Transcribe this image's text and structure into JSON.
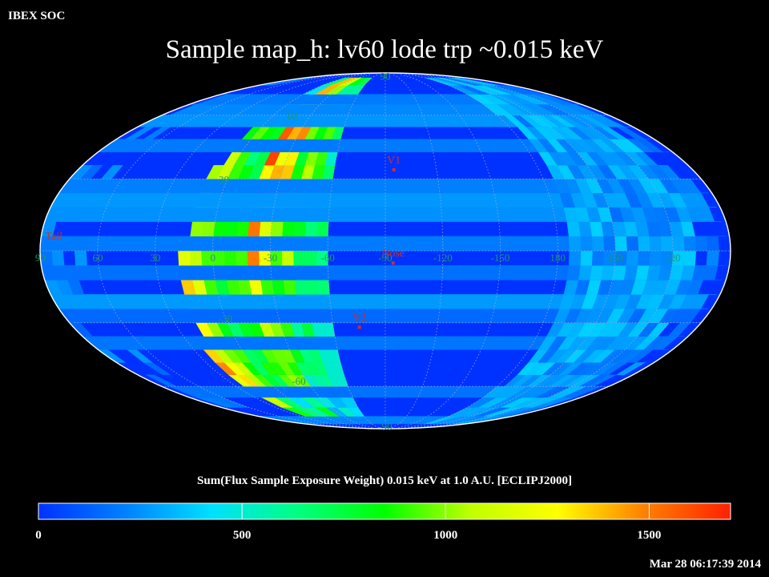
{
  "header": {
    "org_label": "IBEX SOC",
    "title": "Sample map_h: lv60 lode trp ~0.015 keV",
    "timestamp": "Mar 28 06:17:39 2014"
  },
  "map": {
    "projection": "mollweide",
    "background_color": "#0032ff",
    "outline_color": "#ffffff",
    "grid_color": "#9aa6d6",
    "grid_label_color": "#1a9a6a",
    "lat_labels": [
      {
        "text": "90",
        "lat": 90
      },
      {
        "text": "60",
        "lat": 60
      },
      {
        "text": "30",
        "lat": 30
      },
      {
        "text": "-30",
        "lat": -30
      },
      {
        "text": "-60",
        "lat": -60
      },
      {
        "text": "-90",
        "lat": -90
      }
    ],
    "lon_labels": [
      {
        "text": "60",
        "lon": 60
      },
      {
        "text": "30",
        "lon": 30
      },
      {
        "text": "0",
        "lon": 0
      },
      {
        "text": "-30",
        "lon": -30
      },
      {
        "text": "-60",
        "lon": -60
      },
      {
        "text": "-90",
        "lon": -90
      },
      {
        "text": "-120",
        "lon": -120
      },
      {
        "text": "-150",
        "lon": -150
      },
      {
        "text": "180",
        "lon": 180
      },
      {
        "text": "150",
        "lon": 150
      },
      {
        "text": "120",
        "lon": 120
      },
      {
        "text": "90",
        "lon": 90
      }
    ],
    "markers": [
      {
        "name": "V1",
        "lon": -95,
        "lat": 34,
        "color": "#d03020"
      },
      {
        "name": "Nose",
        "lon": -94,
        "lat": -5,
        "color": "#d03020"
      },
      {
        "name": "V2",
        "lon": -75,
        "lat": -32,
        "color": "#d03020"
      },
      {
        "name": "Tail",
        "lon": 86,
        "lat": 5,
        "color": "#d03020"
      }
    ]
  },
  "colorbar": {
    "label": "Sum(Flux Sample Exposure Weight)  0.015 keV at 1.0 A.U. [ECLIPJ2000]",
    "min": 0,
    "max": 1700,
    "ticks": [
      {
        "text": "0",
        "value": 0
      },
      {
        "text": "500",
        "value": 500
      },
      {
        "text": "1000",
        "value": 1000
      },
      {
        "text": "1500",
        "value": 1500
      }
    ],
    "stops": [
      "#0032ff",
      "#0080ff",
      "#00e0ff",
      "#00ff80",
      "#00ff00",
      "#c0ff00",
      "#ffff00",
      "#ff8000",
      "#ff2000"
    ]
  }
}
